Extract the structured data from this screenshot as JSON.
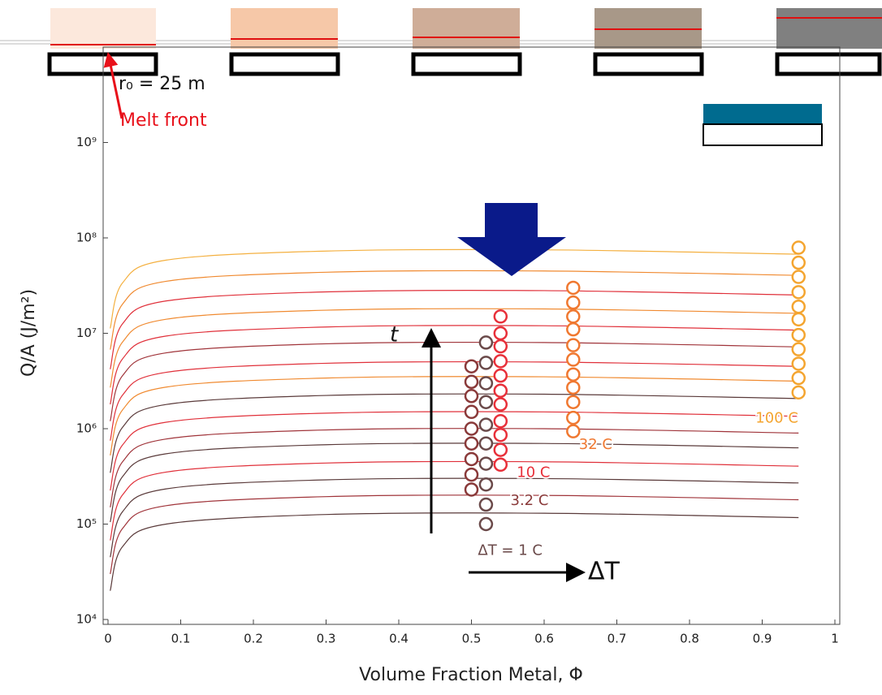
{
  "chart_data": {
    "type": "line",
    "x_label": "Volume Fraction Metal, Φ",
    "y_label": "Q/A (J/m²)",
    "yscale": "log",
    "xlim": [
      0,
      1
    ],
    "ylim": [
      10000,
      10000000000
    ],
    "xticks": [
      0,
      0.1,
      0.2,
      0.3,
      0.4,
      0.5,
      0.6,
      0.7,
      0.8,
      0.9,
      1
    ],
    "yticks": [
      {
        "value": 10000,
        "label": "10⁴"
      },
      {
        "value": 100000,
        "label": "10⁵"
      },
      {
        "value": 1000000,
        "label": "10⁶"
      },
      {
        "value": 10000000,
        "label": "10⁷"
      },
      {
        "value": 100000000,
        "label": "10⁸"
      },
      {
        "value": 1000000000,
        "label": "10⁹"
      }
    ],
    "annotations": {
      "radius": "r₀ = 25 m",
      "melt_front": "Melt front",
      "time": "t",
      "delta_t": "ΔT"
    },
    "series": [
      {
        "type": "line",
        "color": "#5a3a3a",
        "x": [
          0.003,
          0.02,
          0.08,
          0.3,
          0.6,
          0.95
        ],
        "values": [
          20000,
          58000,
          100000,
          126000,
          130000,
          117000
        ]
      },
      {
        "type": "line",
        "color": "#a0343a",
        "x": [
          0.003,
          0.02,
          0.08,
          0.3,
          0.6,
          0.95
        ],
        "values": [
          30000,
          90000,
          156000,
          194000,
          200000,
          180000
        ]
      },
      {
        "type": "line",
        "color": "#5a3a3a",
        "x": [
          0.003,
          0.02,
          0.08,
          0.3,
          0.6,
          0.95
        ],
        "values": [
          45000,
          135000,
          234000,
          291000,
          300000,
          270000
        ]
      },
      {
        "type": "line",
        "color": "#e0303a",
        "x": [
          0.003,
          0.02,
          0.08,
          0.3,
          0.6,
          0.95
        ],
        "values": [
          67500,
          202500,
          351000,
          436500,
          450000,
          405000
        ]
      },
      {
        "type": "line",
        "color": "#5a3a3a",
        "x": [
          0.003,
          0.02,
          0.08,
          0.3,
          0.6,
          0.95
        ],
        "values": [
          105000,
          315000,
          546000,
          679000,
          700000,
          630000
        ]
      },
      {
        "type": "line",
        "color": "#a0343a",
        "x": [
          0.003,
          0.02,
          0.08,
          0.3,
          0.6,
          0.95
        ],
        "values": [
          150000,
          450000,
          780000,
          970000,
          1000000,
          900000
        ]
      },
      {
        "type": "line",
        "color": "#e0303a",
        "x": [
          0.003,
          0.02,
          0.08,
          0.3,
          0.6,
          0.95
        ],
        "values": [
          225000,
          675000,
          1170000,
          1455000,
          1500000,
          1350000
        ]
      },
      {
        "type": "line",
        "color": "#5a3a3a",
        "x": [
          0.003,
          0.02,
          0.08,
          0.3,
          0.6,
          0.95
        ],
        "values": [
          345000,
          1035000,
          1794000,
          2231000,
          2300000,
          2070000
        ]
      },
      {
        "type": "line",
        "color": "#f08a30",
        "x": [
          0.003,
          0.02,
          0.08,
          0.3,
          0.6,
          0.95
        ],
        "values": [
          525000,
          1575000,
          2730000,
          3395000,
          3500000,
          3150000
        ]
      },
      {
        "type": "line",
        "color": "#e0303a",
        "x": [
          0.003,
          0.02,
          0.08,
          0.3,
          0.6,
          0.95
        ],
        "values": [
          750000,
          2250000,
          3900000,
          4850000,
          5000000,
          4500000
        ]
      },
      {
        "type": "line",
        "color": "#a0343a",
        "x": [
          0.003,
          0.02,
          0.08,
          0.3,
          0.6,
          0.95
        ],
        "values": [
          1200000,
          3600000,
          6240000,
          7760000,
          8000000,
          7200000
        ]
      },
      {
        "type": "line",
        "color": "#e0303a",
        "x": [
          0.003,
          0.02,
          0.08,
          0.3,
          0.6,
          0.95
        ],
        "values": [
          1800000,
          5400000,
          9360000,
          11640000,
          12000000,
          10800000
        ]
      },
      {
        "type": "line",
        "color": "#f08a30",
        "x": [
          0.003,
          0.02,
          0.08,
          0.3,
          0.6,
          0.95
        ],
        "values": [
          2700000,
          8100000,
          14040000,
          17460000,
          18000000,
          16200000
        ]
      },
      {
        "type": "line",
        "color": "#e0303a",
        "x": [
          0.003,
          0.02,
          0.08,
          0.3,
          0.6,
          0.95
        ],
        "values": [
          4200000,
          12600000,
          21840000,
          27160000,
          28000000,
          25200000
        ]
      },
      {
        "type": "line",
        "color": "#f08a30",
        "x": [
          0.003,
          0.02,
          0.08,
          0.3,
          0.6,
          0.95
        ],
        "values": [
          6750000,
          20250000,
          35100000,
          43650000,
          45000000,
          40500000
        ]
      },
      {
        "type": "line",
        "color": "#f4b040",
        "x": [
          0.003,
          0.02,
          0.08,
          0.3,
          0.6,
          0.95
        ],
        "values": [
          11250000,
          33750000,
          58500000,
          72750000,
          75000000,
          67500000
        ]
      },
      {
        "type": "scatter",
        "name": "ΔT = 1 C",
        "color": "#6b4a4a",
        "x": [
          0.52,
          0.52,
          0.52,
          0.52,
          0.52,
          0.52,
          0.52,
          0.52,
          0.52,
          0.52
        ],
        "values": [
          100000,
          160000,
          260000,
          430000,
          700000,
          1100000,
          1900000,
          3000000,
          4900000,
          8000000
        ]
      },
      {
        "type": "scatter",
        "name": "3.2 C",
        "color": "#8a3a3a",
        "x": [
          0.5,
          0.5,
          0.5,
          0.5,
          0.5,
          0.5,
          0.5,
          0.5,
          0.5
        ],
        "values": [
          230000,
          330000,
          480000,
          700000,
          1000000,
          1500000,
          2200000,
          3100000,
          4500000
        ]
      },
      {
        "type": "scatter",
        "name": "10 C",
        "color": "#e8303a",
        "x": [
          0.54,
          0.54,
          0.54,
          0.54,
          0.54,
          0.54,
          0.54,
          0.54,
          0.54,
          0.54,
          0.54
        ],
        "values": [
          420000,
          600000,
          860000,
          1200000,
          1800000,
          2500000,
          3600000,
          5100000,
          7300000,
          10000000,
          15000000
        ]
      },
      {
        "type": "scatter",
        "name": "32 C",
        "color": "#f07830",
        "x": [
          0.64,
          0.64,
          0.64,
          0.64,
          0.64,
          0.64,
          0.64,
          0.64,
          0.64,
          0.64,
          0.64
        ],
        "values": [
          940000,
          1300000,
          1900000,
          2700000,
          3700000,
          5300000,
          7500000,
          11000000,
          15000000,
          21000000,
          30000000
        ]
      },
      {
        "type": "scatter",
        "name": "100 C",
        "color": "#f4a530",
        "x": [
          0.95,
          0.95,
          0.95,
          0.95,
          0.95,
          0.95,
          0.95,
          0.95,
          0.95,
          0.95,
          0.95
        ],
        "values": [
          2400000,
          3400000,
          4800000,
          6800000,
          9600000,
          14000000,
          19000000,
          27000000,
          39000000,
          55000000,
          79000000
        ]
      }
    ]
  }
}
